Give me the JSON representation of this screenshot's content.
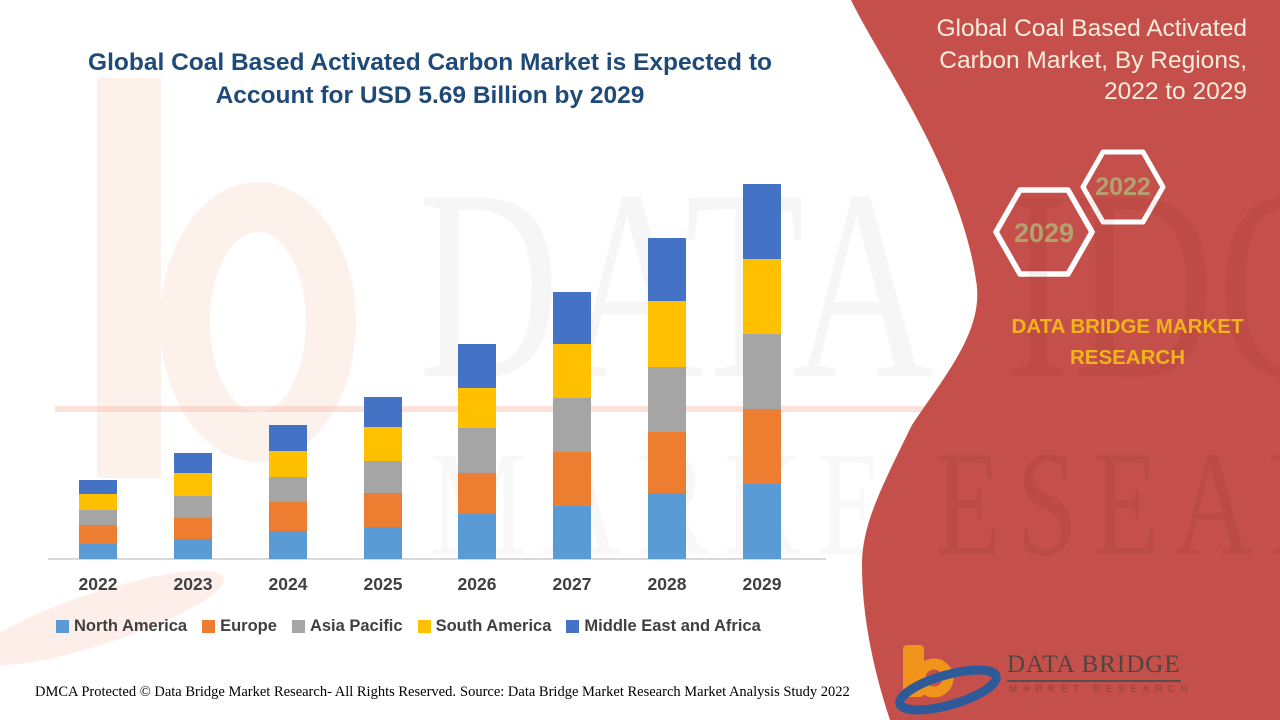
{
  "header": {
    "title_line1": "Global Coal Based Activated Carbon Market is Expected to",
    "title_line2": "Account for USD 5.69 Billion by 2029"
  },
  "side_panel": {
    "title": "Global Coal Based Activated Carbon Market, By Regions, 2022 to 2029",
    "title_lines": [
      "Global Coal Based Activated",
      "Carbon Market, By Regions,",
      "2022 to 2029"
    ],
    "hexagon_back_label": "2029",
    "hexagon_front_label": "2022",
    "brand_line1": "DATA BRIDGE MARKET",
    "brand_line2": "RESEARCH",
    "logo_name": "DATA BRIDGE",
    "logo_subtext": "MARKET RESEARCH",
    "colors": {
      "background": "#c5504b",
      "hexagon_outline": "#ffffff",
      "hexagon_year_text": "#b3a26e",
      "brand_text": "#f1b31b",
      "title_text": "#f6ecdc"
    }
  },
  "watermark": {
    "line1": "DATA BRIDGE",
    "line2": "MARKET RESEARCH",
    "frag1": "IDGE",
    "frag2": "ESEARCH"
  },
  "chart_data": {
    "type": "bar",
    "stacked": true,
    "title": "Global Coal Based Activated Carbon Market is Expected to Account for USD 5.69 Billion by 2029",
    "units": "USD Billion",
    "note": "segment values estimated from bar heights; 2029 total labeled as USD 5.69 Billion",
    "categories": [
      "2022",
      "2023",
      "2024",
      "2025",
      "2026",
      "2027",
      "2028",
      "2029"
    ],
    "series": [
      {
        "name": "North America",
        "color": "#5B9BD5",
        "values": [
          0.23,
          0.3,
          0.43,
          0.48,
          0.68,
          0.81,
          1.0,
          1.14
        ]
      },
      {
        "name": "Europe",
        "color": "#ED7D31",
        "values": [
          0.28,
          0.33,
          0.43,
          0.53,
          0.63,
          0.81,
          0.93,
          1.14
        ]
      },
      {
        "name": "Asia Pacific",
        "color": "#A5A5A5",
        "values": [
          0.23,
          0.33,
          0.38,
          0.48,
          0.68,
          0.83,
          0.99,
          1.14
        ]
      },
      {
        "name": "South America",
        "color": "#FFC000",
        "values": [
          0.25,
          0.35,
          0.4,
          0.51,
          0.61,
          0.81,
          0.99,
          1.14
        ]
      },
      {
        "name": "Middle East and Africa",
        "color": "#4472C4",
        "values": [
          0.2,
          0.3,
          0.4,
          0.46,
          0.66,
          0.79,
          0.96,
          1.13
        ]
      }
    ],
    "totals": [
      1.19,
      1.61,
      2.04,
      2.46,
      3.26,
      4.05,
      4.87,
      5.69
    ],
    "xlabel": "",
    "ylabel": "",
    "ylim": [
      0,
      5.69
    ],
    "grid": false,
    "legend_position": "bottom"
  },
  "footer": {
    "left": "DMCA Protected © Data Bridge Market Research- All Rights Reserved.",
    "right": "Source: Data Bridge Market Research Market Analysis Study 2022"
  }
}
